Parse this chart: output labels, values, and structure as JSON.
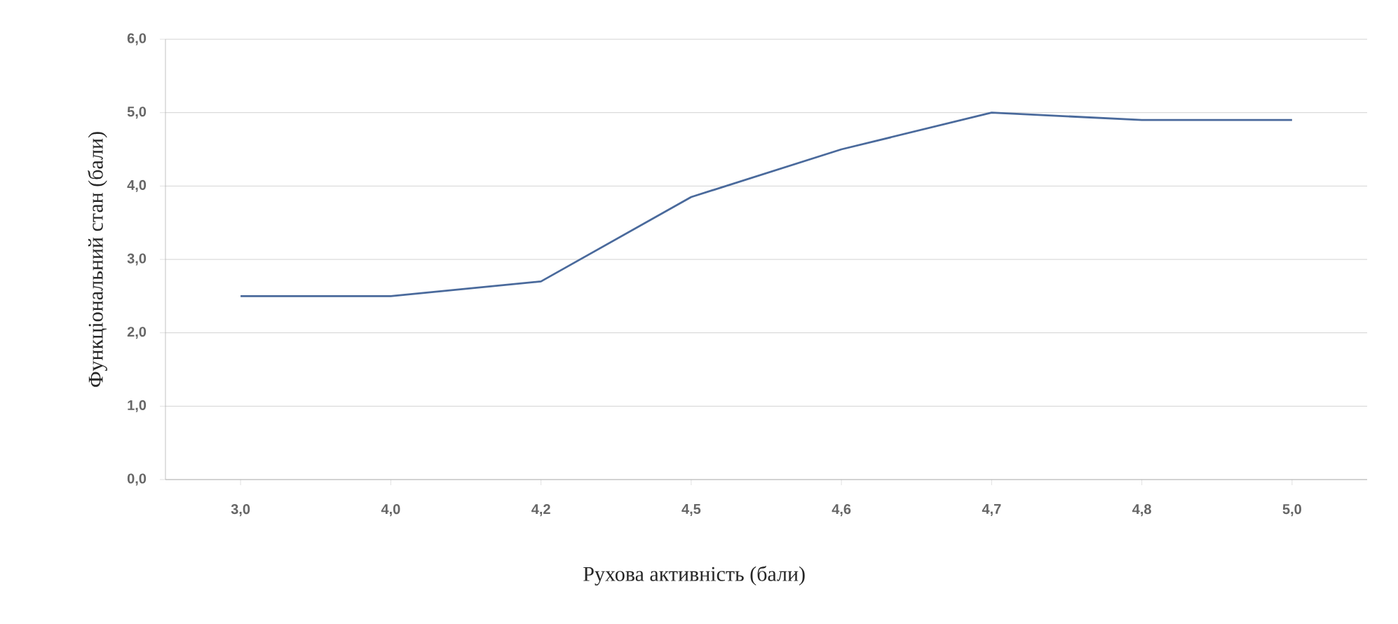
{
  "chart_data": {
    "type": "line",
    "xlabel": "Рухова активність (бали)",
    "ylabel": "Функціональний стан (бали)",
    "categories": [
      "3,0",
      "4,0",
      "4,2",
      "4,5",
      "4,6",
      "4,7",
      "4,8",
      "5,0"
    ],
    "values": [
      2.5,
      2.5,
      2.7,
      3.85,
      4.5,
      5.0,
      4.9,
      4.9
    ],
    "color": "#4a6a9c",
    "ylim": [
      0,
      6
    ],
    "yticks": [
      {
        "value": 0,
        "label": "0,0"
      },
      {
        "value": 1,
        "label": "1,0"
      },
      {
        "value": 2,
        "label": "2,0"
      },
      {
        "value": 3,
        "label": "3,0"
      },
      {
        "value": 4,
        "label": "4,0"
      },
      {
        "value": 5,
        "label": "5,0"
      },
      {
        "value": 6,
        "label": "6,0"
      }
    ],
    "grid": "y",
    "line_style": "solid"
  }
}
